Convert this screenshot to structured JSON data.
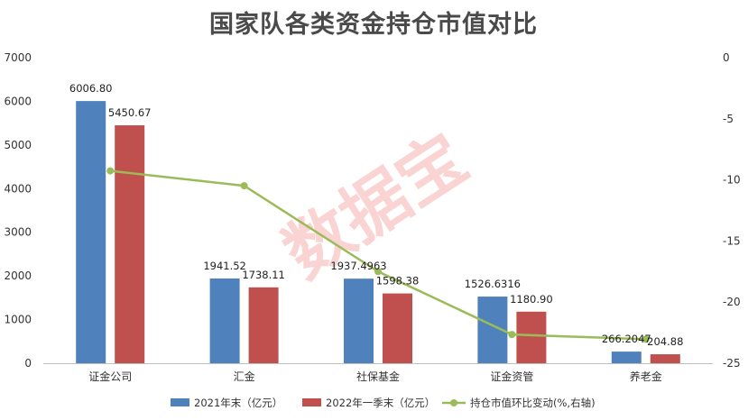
{
  "chart_data": {
    "type": "bar",
    "title": "国家队各类资金持仓市值对比",
    "categories": [
      "证金公司",
      "汇金",
      "社保基金",
      "证金资管",
      "养老金"
    ],
    "series": [
      {
        "name": "2021年末（亿元）",
        "values": [
          6006.8,
          1941.52,
          1937.4963,
          1526.6316,
          266.2047
        ],
        "labels": [
          "6006.80",
          "1941.52",
          "1937.4963",
          "1526.6316",
          "266.2047"
        ],
        "color": "#4f81bd"
      },
      {
        "name": "2022年一季末（亿元）",
        "values": [
          5450.67,
          1738.11,
          1598.38,
          1180.9,
          204.88
        ],
        "labels": [
          "5450.67",
          "1738.11",
          "1598.38",
          "1180.90",
          "204.88"
        ],
        "color": "#c0504d"
      }
    ],
    "line_series": {
      "name": "持仓市值环比变动(%,右轴)",
      "values": [
        -9.26,
        -10.48,
        -17.5,
        -22.65,
        -23.04
      ],
      "color": "#9bbb59"
    },
    "y_left": {
      "min": 0,
      "max": 7000,
      "step": 1000,
      "ticks": [
        "0",
        "1000",
        "2000",
        "3000",
        "4000",
        "5000",
        "6000",
        "7000"
      ]
    },
    "y_right": {
      "min": -25,
      "max": 0,
      "step": 5,
      "ticks": [
        "0",
        "-5",
        "-10",
        "-15",
        "-20",
        "-25"
      ]
    },
    "legend_position": "bottom",
    "grid": false
  },
  "watermark": "数据宝"
}
